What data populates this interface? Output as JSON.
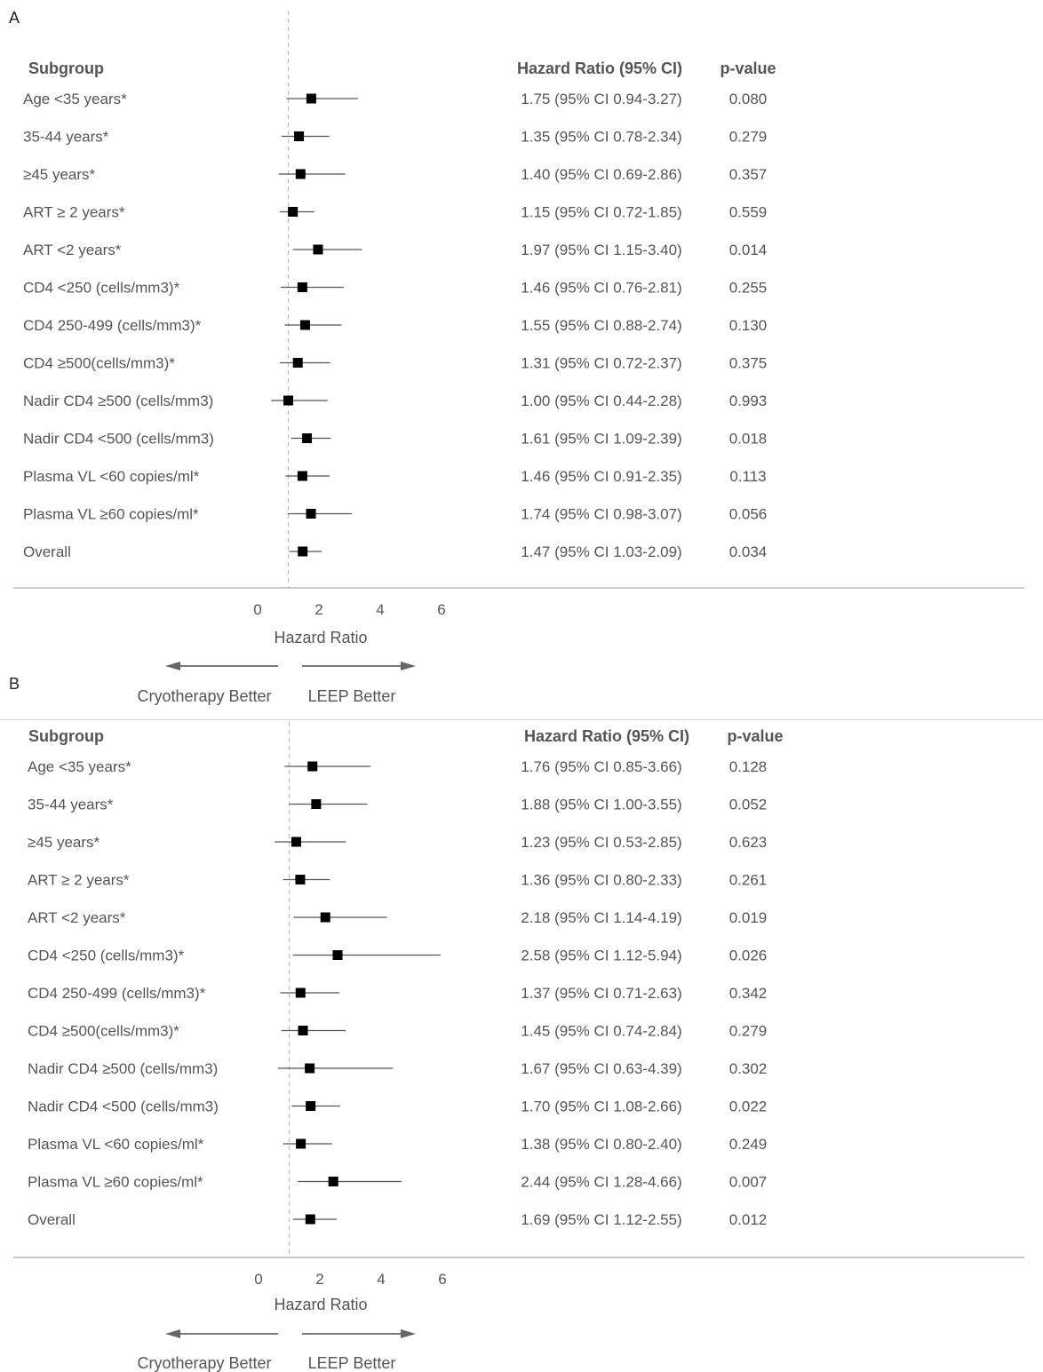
{
  "chart_data": [
    {
      "panel": "A",
      "type": "forest",
      "headers": {
        "subgroup": "Subgroup",
        "hr": "Hazard Ratio (95% CI)",
        "p": "p-value"
      },
      "xlabel": "Hazard Ratio",
      "xticks": [
        0,
        2,
        4,
        6
      ],
      "xlim": [
        0,
        6
      ],
      "reference_line": 1,
      "left_label": "Cryotherapy Better",
      "right_label": "LEEP Better",
      "rows": [
        {
          "label": "Age <35 years*",
          "hr": 1.75,
          "lo": 0.94,
          "hi": 3.27,
          "ci_text": "1.75 (95% CI 0.94-3.27)",
          "p": "0.080"
        },
        {
          "label": "35-44 years*",
          "hr": 1.35,
          "lo": 0.78,
          "hi": 2.34,
          "ci_text": "1.35 (95% CI 0.78-2.34)",
          "p": "0.279"
        },
        {
          "label": "≥45 years*",
          "hr": 1.4,
          "lo": 0.69,
          "hi": 2.86,
          "ci_text": "1.40 (95% CI 0.69-2.86)",
          "p": "0.357"
        },
        {
          "label": "ART ≥ 2 years*",
          "hr": 1.15,
          "lo": 0.72,
          "hi": 1.85,
          "ci_text": "1.15 (95% CI 0.72-1.85)",
          "p": "0.559"
        },
        {
          "label": "ART <2 years*",
          "hr": 1.97,
          "lo": 1.15,
          "hi": 3.4,
          "ci_text": "1.97 (95% CI 1.15-3.40)",
          "p": "0.014"
        },
        {
          "label": "CD4 <250 (cells/mm3)*",
          "hr": 1.46,
          "lo": 0.76,
          "hi": 2.81,
          "ci_text": "1.46 (95% CI 0.76-2.81)",
          "p": "0.255"
        },
        {
          "label": "CD4 250-499 (cells/mm3)*",
          "hr": 1.55,
          "lo": 0.88,
          "hi": 2.74,
          "ci_text": "1.55 (95% CI 0.88-2.74)",
          "p": "0.130"
        },
        {
          "label": "CD4 ≥500(cells/mm3)*",
          "hr": 1.31,
          "lo": 0.72,
          "hi": 2.37,
          "ci_text": "1.31 (95% CI 0.72-2.37)",
          "p": "0.375"
        },
        {
          "label": "Nadir CD4 ≥500 (cells/mm3)",
          "hr": 1.0,
          "lo": 0.44,
          "hi": 2.28,
          "ci_text": "1.00 (95% CI 0.44-2.28)",
          "p": "0.993"
        },
        {
          "label": "Nadir CD4 <500 (cells/mm3)",
          "hr": 1.61,
          "lo": 1.09,
          "hi": 2.39,
          "ci_text": "1.61 (95% CI 1.09-2.39)",
          "p": "0.018"
        },
        {
          "label": "Plasma VL <60 copies/ml*",
          "hr": 1.46,
          "lo": 0.91,
          "hi": 2.35,
          "ci_text": "1.46 (95% CI 0.91-2.35)",
          "p": "0.113"
        },
        {
          "label": "Plasma VL ≥60 copies/ml*",
          "hr": 1.74,
          "lo": 0.98,
          "hi": 3.07,
          "ci_text": "1.74 (95% CI 0.98-3.07)",
          "p": "0.056"
        },
        {
          "label": "Overall",
          "hr": 1.47,
          "lo": 1.03,
          "hi": 2.09,
          "ci_text": "1.47 (95% CI 1.03-2.09)",
          "p": "0.034"
        }
      ]
    },
    {
      "panel": "B",
      "type": "forest",
      "headers": {
        "subgroup": "Subgroup",
        "hr": "Hazard Ratio (95% CI)",
        "p": "p-value"
      },
      "xlabel": "Hazard Ratio",
      "xticks": [
        0,
        2,
        4,
        6
      ],
      "xlim": [
        0,
        6
      ],
      "reference_line": 1,
      "left_label": "Cryotherapy Better",
      "right_label": "LEEP Better",
      "rows": [
        {
          "label": "Age <35 years*",
          "hr": 1.76,
          "lo": 0.85,
          "hi": 3.66,
          "ci_text": "1.76 (95% CI 0.85-3.66)",
          "p": "0.128"
        },
        {
          "label": "35-44 years*",
          "hr": 1.88,
          "lo": 1.0,
          "hi": 3.55,
          "ci_text": "1.88 (95% CI 1.00-3.55)",
          "p": "0.052"
        },
        {
          "label": "≥45 years*",
          "hr": 1.23,
          "lo": 0.53,
          "hi": 2.85,
          "ci_text": "1.23 (95% CI 0.53-2.85)",
          "p": "0.623"
        },
        {
          "label": "ART ≥ 2 years*",
          "hr": 1.36,
          "lo": 0.8,
          "hi": 2.33,
          "ci_text": "1.36 (95% CI 0.80-2.33)",
          "p": "0.261"
        },
        {
          "label": "ART <2 years*",
          "hr": 2.18,
          "lo": 1.14,
          "hi": 4.19,
          "ci_text": "2.18 (95% CI 1.14-4.19)",
          "p": "0.019"
        },
        {
          "label": "CD4 <250 (cells/mm3)*",
          "hr": 2.58,
          "lo": 1.12,
          "hi": 5.94,
          "ci_text": "2.58 (95% CI 1.12-5.94)",
          "p": "0.026"
        },
        {
          "label": "CD4 250-499 (cells/mm3)*",
          "hr": 1.37,
          "lo": 0.71,
          "hi": 2.63,
          "ci_text": "1.37 (95% CI 0.71-2.63)",
          "p": "0.342"
        },
        {
          "label": "CD4 ≥500(cells/mm3)*",
          "hr": 1.45,
          "lo": 0.74,
          "hi": 2.84,
          "ci_text": "1.45 (95% CI 0.74-2.84)",
          "p": "0.279"
        },
        {
          "label": "Nadir CD4 ≥500 (cells/mm3)",
          "hr": 1.67,
          "lo": 0.63,
          "hi": 4.39,
          "ci_text": "1.67 (95% CI 0.63-4.39)",
          "p": "0.302"
        },
        {
          "label": "Nadir CD4 <500 (cells/mm3)",
          "hr": 1.7,
          "lo": 1.08,
          "hi": 2.66,
          "ci_text": "1.70 (95% CI 1.08-2.66)",
          "p": "0.022"
        },
        {
          "label": "Plasma VL <60 copies/ml*",
          "hr": 1.38,
          "lo": 0.8,
          "hi": 2.4,
          "ci_text": "1.38 (95% CI 0.80-2.40)",
          "p": "0.249"
        },
        {
          "label": "Plasma VL ≥60 copies/ml*",
          "hr": 2.44,
          "lo": 1.28,
          "hi": 4.66,
          "ci_text": "2.44 (95% CI 1.28-4.66)",
          "p": "0.007"
        },
        {
          "label": "Overall",
          "hr": 1.69,
          "lo": 1.12,
          "hi": 2.55,
          "ci_text": "1.69 (95% CI 1.12-2.55)",
          "p": "0.012"
        }
      ]
    }
  ],
  "colors": {
    "text": "#555555",
    "marker": "#000000",
    "ci_line": "#555555",
    "ref_line": "#bbbbbb",
    "axis": "#aaaaaa",
    "arrow": "#666666"
  }
}
